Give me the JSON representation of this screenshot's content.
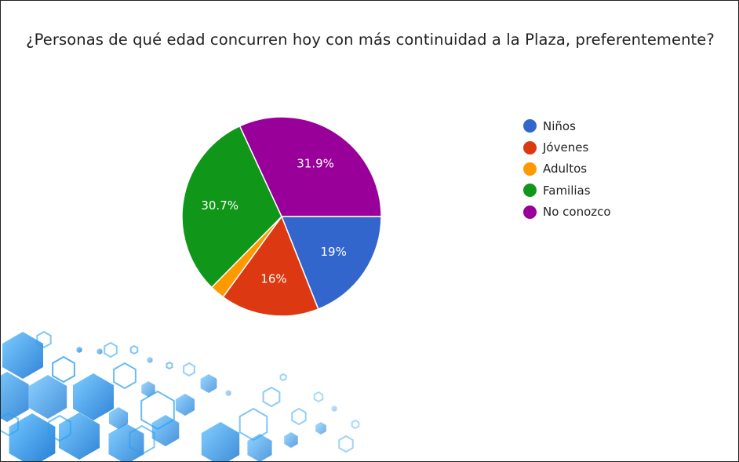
{
  "chart_data": {
    "type": "pie",
    "title": "¿Personas de qué edad concurren hoy con más continuidad a la Plaza, preferentemente?",
    "legend_position": "right",
    "slices": [
      {
        "label": "Niños",
        "value": 19.0,
        "value_label": "19%",
        "color": "#3366cc"
      },
      {
        "label": "Jóvenes",
        "value": 16.0,
        "value_label": "16%",
        "color": "#dc3912"
      },
      {
        "label": "Adultos",
        "value": 2.4,
        "value_label": "",
        "color": "#ff9900"
      },
      {
        "label": "Familias",
        "value": 30.7,
        "value_label": "30.7%",
        "color": "#109618"
      },
      {
        "label": "No conozco",
        "value": 31.9,
        "value_label": "31.9%",
        "color": "#990099"
      }
    ]
  }
}
